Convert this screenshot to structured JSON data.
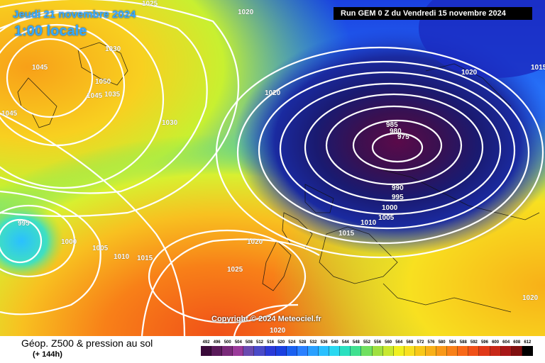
{
  "header": {
    "date": "Jeudi 21 novembre 2024",
    "time": "1:00 locale",
    "run": "Run GEM 0 Z du Vendredi 15 novembre 2024"
  },
  "copyright": "Copyright © 2024 Meteociel.fr",
  "footer": {
    "product": "Géop. Z500 & pression au sol",
    "horizon": "(+ 144h)"
  },
  "legend": {
    "values": [
      "492",
      "496",
      "500",
      "504",
      "508",
      "512",
      "516",
      "520",
      "524",
      "528",
      "532",
      "536",
      "540",
      "544",
      "548",
      "552",
      "556",
      "560",
      "564",
      "568",
      "572",
      "576",
      "580",
      "584",
      "588",
      "592",
      "596",
      "600",
      "604",
      "608",
      "612"
    ],
    "colors": [
      "#3a0a3a",
      "#5a1a5a",
      "#7a2a7a",
      "#9a3a9a",
      "#6a4ab0",
      "#4a4ac8",
      "#2a3ad8",
      "#1a40e0",
      "#1a60f0",
      "#2a80ff",
      "#2aa0ff",
      "#2ac0ff",
      "#2ad8f0",
      "#2ae0c0",
      "#40e090",
      "#70e060",
      "#a0e040",
      "#c8e830",
      "#f0f020",
      "#f8e020",
      "#f8c818",
      "#f8b018",
      "#f89818",
      "#f88018",
      "#f86818",
      "#f05018",
      "#e03818",
      "#c82818",
      "#a81818",
      "#801010",
      "#000000"
    ]
  },
  "isobars": [
    {
      "label": "1025",
      "color": "#ffffff"
    },
    {
      "label": "1020",
      "color": "#ffffff"
    },
    {
      "label": "1045",
      "color": "#ffffff"
    },
    {
      "label": "1050",
      "color": "#ffffff"
    },
    {
      "label": "1045",
      "color": "#ffffff"
    },
    {
      "label": "1035",
      "color": "#ffffff"
    },
    {
      "label": "1045",
      "color": "#ffffff"
    },
    {
      "label": "1030",
      "color": "#ffffff"
    },
    {
      "label": "1030",
      "color": "#ffffff"
    },
    {
      "label": "1020",
      "color": "#ffffff"
    },
    {
      "label": "1020",
      "color": "#ffffff"
    },
    {
      "label": "1015",
      "color": "#ffffff"
    },
    {
      "label": "985",
      "color": "#ffffff"
    },
    {
      "label": "980",
      "color": "#ffffff"
    },
    {
      "label": "975",
      "color": "#ffffff"
    },
    {
      "label": "990",
      "color": "#ffffff"
    },
    {
      "label": "995",
      "color": "#ffffff"
    },
    {
      "label": "1000",
      "color": "#ffffff"
    },
    {
      "label": "1005",
      "color": "#ffffff"
    },
    {
      "label": "1010",
      "color": "#ffffff"
    },
    {
      "label": "1015",
      "color": "#ffffff"
    },
    {
      "label": "995",
      "color": "#ffffff"
    },
    {
      "label": "1000",
      "color": "#ffffff"
    },
    {
      "label": "1005",
      "color": "#ffffff"
    },
    {
      "label": "1010",
      "color": "#ffffff"
    },
    {
      "label": "1015",
      "color": "#ffffff"
    },
    {
      "label": "1020",
      "color": "#ffffff"
    },
    {
      "label": "1025",
      "color": "#ffffff"
    },
    {
      "label": "1020",
      "color": "#ffffff"
    },
    {
      "label": "1020",
      "color": "#ffffff"
    }
  ]
}
